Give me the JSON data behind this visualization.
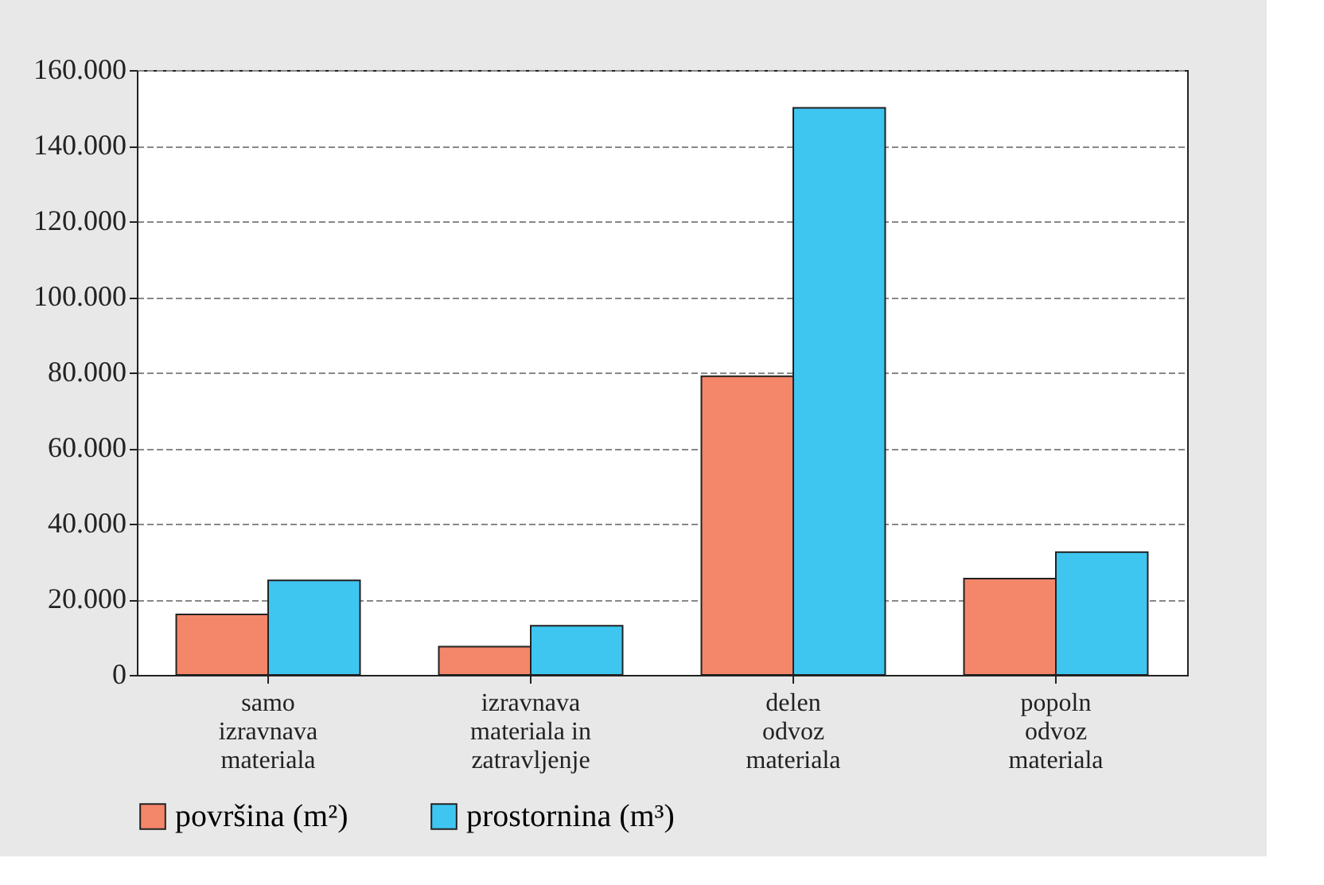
{
  "chart_data": {
    "type": "bar",
    "categories": [
      "samo\nizravnava\nmateriala",
      "izravnava\nmateriala in\nzatravljenje",
      "delen\nodvoz\nmateriala",
      "popoln\nodvoz\nmateriala"
    ],
    "series": [
      {
        "name": "površina (m²)",
        "color": "#f4866a",
        "values": [
          16000,
          7500,
          79000,
          25500
        ]
      },
      {
        "name": "prostornina (m³)",
        "color": "#3ec6f0",
        "values": [
          25000,
          13000,
          150000,
          32500
        ]
      }
    ],
    "ylim": [
      0,
      160000
    ],
    "yticks": [
      0,
      {
        "value": 20000,
        "label": "20.000"
      },
      {
        "value": 40000,
        "label": "40.000"
      },
      {
        "value": 60000,
        "label": "60.000"
      },
      {
        "value": 80000,
        "label": "80.000"
      },
      {
        "value": 100000,
        "label": "100.000"
      },
      {
        "value": 120000,
        "label": "120.000"
      },
      {
        "value": 140000,
        "label": "140.000"
      },
      {
        "value": 160000,
        "label": "160.000"
      }
    ],
    "grid": "y",
    "legend": "bottom"
  }
}
